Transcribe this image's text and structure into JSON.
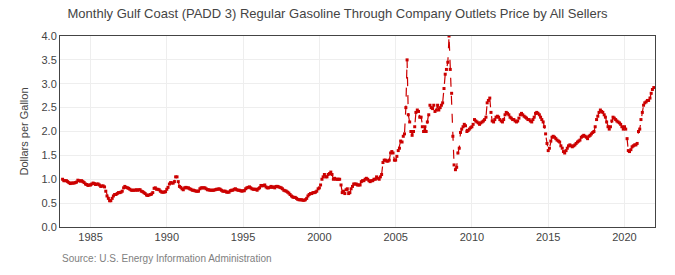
{
  "chart_data": {
    "type": "line",
    "title": "Monthly Gulf Coast (PADD 3) Regular Gasoline Through Company Outlets Price by All Sellers",
    "ylabel": "Dollars per Gallon",
    "annotations": [
      "Source: U.S. Energy Information Administration"
    ],
    "color": "#CC0000",
    "marker": "square",
    "line_style": "dashed",
    "grid": true,
    "xlim": [
      1983,
      2022
    ],
    "ylim": [
      0.0,
      4.0
    ],
    "xticks": [
      1985,
      1990,
      1995,
      2000,
      2005,
      2010,
      2015,
      2020
    ],
    "yticks": [
      {
        "value": 0.0,
        "label": "0.0"
      },
      0.5,
      {
        "value": 1.0,
        "label": "1.0"
      },
      1.5,
      {
        "value": 2.0,
        "label": "2.0"
      },
      2.5,
      {
        "value": 3.0,
        "label": "3.0"
      },
      3.5,
      {
        "value": 4.0,
        "label": "4.0"
      }
    ],
    "x": [
      1983.17,
      1983.25,
      1983.33,
      1983.42,
      1983.5,
      1983.58,
      1983.67,
      1983.75,
      1983.83,
      1983.92,
      1984.0,
      1984.08,
      1984.17,
      1984.25,
      1984.33,
      1984.42,
      1984.5,
      1984.58,
      1984.67,
      1984.75,
      1984.83,
      1984.92,
      1985.0,
      1985.08,
      1985.17,
      1985.25,
      1985.33,
      1985.42,
      1985.5,
      1985.58,
      1985.67,
      1985.75,
      1985.83,
      1985.92,
      1986.0,
      1986.08,
      1986.17,
      1986.25,
      1986.33,
      1986.42,
      1986.5,
      1986.58,
      1986.67,
      1986.75,
      1986.83,
      1986.92,
      1987.0,
      1987.08,
      1987.17,
      1987.25,
      1987.33,
      1987.42,
      1987.5,
      1987.58,
      1987.67,
      1987.75,
      1987.83,
      1987.92,
      1988.0,
      1988.08,
      1988.17,
      1988.25,
      1988.33,
      1988.42,
      1988.5,
      1988.58,
      1988.67,
      1988.75,
      1988.83,
      1988.92,
      1989.0,
      1989.08,
      1989.17,
      1989.25,
      1989.33,
      1989.42,
      1989.5,
      1989.58,
      1989.67,
      1989.75,
      1989.83,
      1989.92,
      1990.0,
      1990.08,
      1990.17,
      1990.25,
      1990.33,
      1990.42,
      1990.5,
      1990.58,
      1990.67,
      1990.75,
      1990.83,
      1990.92,
      1991.0,
      1991.08,
      1991.17,
      1991.25,
      1991.33,
      1991.42,
      1991.5,
      1991.58,
      1991.67,
      1991.75,
      1991.83,
      1991.92,
      1992.0,
      1992.08,
      1992.17,
      1992.25,
      1992.33,
      1992.42,
      1992.5,
      1992.58,
      1992.67,
      1992.75,
      1992.83,
      1992.92,
      1993.0,
      1993.08,
      1993.17,
      1993.25,
      1993.33,
      1993.42,
      1993.5,
      1993.58,
      1993.67,
      1993.75,
      1993.83,
      1993.92,
      1994.0,
      1994.08,
      1994.17,
      1994.25,
      1994.33,
      1994.42,
      1994.5,
      1994.58,
      1994.67,
      1994.75,
      1994.83,
      1994.92,
      1995.0,
      1995.08,
      1995.17,
      1995.25,
      1995.33,
      1995.42,
      1995.5,
      1995.58,
      1995.67,
      1995.75,
      1995.83,
      1995.92,
      1996.0,
      1996.08,
      1996.17,
      1996.25,
      1996.33,
      1996.42,
      1996.5,
      1996.58,
      1996.67,
      1996.75,
      1996.83,
      1996.92,
      1997.0,
      1997.08,
      1997.17,
      1997.25,
      1997.33,
      1997.42,
      1997.5,
      1997.58,
      1997.67,
      1997.75,
      1997.83,
      1997.92,
      1998.0,
      1998.08,
      1998.17,
      1998.25,
      1998.33,
      1998.42,
      1998.5,
      1998.58,
      1998.67,
      1998.75,
      1998.83,
      1998.92,
      1999.0,
      1999.08,
      1999.17,
      1999.25,
      1999.33,
      1999.42,
      1999.5,
      1999.58,
      1999.67,
      1999.75,
      1999.83,
      1999.92,
      2000.0,
      2000.08,
      2000.17,
      2000.25,
      2000.33,
      2000.42,
      2000.5,
      2000.58,
      2000.67,
      2000.75,
      2000.83,
      2000.92,
      2001.0,
      2001.08,
      2001.17,
      2001.25,
      2001.33,
      2001.42,
      2001.5,
      2001.58,
      2001.67,
      2001.75,
      2001.83,
      2001.92,
      2002.0,
      2002.08,
      2002.17,
      2002.25,
      2002.33,
      2002.42,
      2002.5,
      2002.58,
      2002.67,
      2002.75,
      2002.83,
      2002.92,
      2003.0,
      2003.08,
      2003.17,
      2003.25,
      2003.33,
      2003.42,
      2003.5,
      2003.58,
      2003.67,
      2003.75,
      2003.83,
      2003.92,
      2004.0,
      2004.08,
      2004.17,
      2004.25,
      2004.33,
      2004.42,
      2004.5,
      2004.58,
      2004.67,
      2004.75,
      2004.83,
      2004.92,
      2005.0,
      2005.08,
      2005.17,
      2005.25,
      2005.33,
      2005.42,
      2005.5,
      2005.58,
      2005.67,
      2005.75,
      2005.83,
      2005.92,
      2006.0,
      2006.08,
      2006.17,
      2006.25,
      2006.33,
      2006.42,
      2006.5,
      2006.58,
      2006.67,
      2006.75,
      2006.83,
      2006.92,
      2007.0,
      2007.08,
      2007.17,
      2007.25,
      2007.33,
      2007.42,
      2007.5,
      2007.58,
      2007.67,
      2007.75,
      2007.83,
      2007.92,
      2008.0,
      2008.08,
      2008.17,
      2008.25,
      2008.33,
      2008.42,
      2008.5,
      2008.58,
      2008.67,
      2008.75,
      2008.83,
      2008.92,
      2009.0,
      2009.08,
      2009.17,
      2009.25,
      2009.33,
      2009.42,
      2009.5,
      2009.58,
      2009.67,
      2009.75,
      2009.83,
      2009.92,
      2010.0,
      2010.08,
      2010.17,
      2010.25,
      2010.33,
      2010.42,
      2010.5,
      2010.58,
      2010.67,
      2010.75,
      2010.83,
      2010.92,
      2011.0,
      2011.08,
      2011.17,
      2011.25,
      2011.33,
      2011.42,
      2011.5,
      2011.58,
      2011.67,
      2011.75,
      2011.83,
      2011.92,
      2012.0,
      2012.08,
      2012.17,
      2012.25,
      2012.33,
      2012.42,
      2012.5,
      2012.58,
      2012.67,
      2012.75,
      2012.83,
      2012.92,
      2013.0,
      2013.08,
      2013.17,
      2013.25,
      2013.33,
      2013.42,
      2013.5,
      2013.58,
      2013.67,
      2013.75,
      2013.83,
      2013.92,
      2014.0,
      2014.08,
      2014.17,
      2014.25,
      2014.33,
      2014.42,
      2014.5,
      2014.58,
      2014.67,
      2014.75,
      2014.83,
      2014.92,
      2015.0,
      2015.08,
      2015.17,
      2015.25,
      2015.33,
      2015.42,
      2015.5,
      2015.58,
      2015.67,
      2015.75,
      2015.83,
      2015.92,
      2016.0,
      2016.08,
      2016.17,
      2016.25,
      2016.33,
      2016.42,
      2016.5,
      2016.58,
      2016.67,
      2016.75,
      2016.83,
      2016.92,
      2017.0,
      2017.08,
      2017.17,
      2017.25,
      2017.33,
      2017.42,
      2017.5,
      2017.58,
      2017.67,
      2017.75,
      2017.83,
      2017.92,
      2018.0,
      2018.08,
      2018.17,
      2018.25,
      2018.33,
      2018.42,
      2018.5,
      2018.58,
      2018.67,
      2018.75,
      2018.83,
      2018.92,
      2019.0,
      2019.08,
      2019.17,
      2019.25,
      2019.33,
      2019.42,
      2019.5,
      2019.58,
      2019.67,
      2019.75,
      2019.83,
      2019.92,
      2020.0,
      2020.08,
      2020.17,
      2020.25,
      2020.33,
      2020.42,
      2020.5,
      2020.58,
      2020.67,
      2020.75,
      2020.83,
      2020.92,
      2021.0,
      2021.08,
      2021.17,
      2021.25,
      2021.33,
      2021.42,
      2021.5,
      2021.58,
      2021.67,
      2021.75,
      2021.83,
      2021.92
    ],
    "values": [
      1.0,
      0.97,
      0.97,
      0.97,
      0.95,
      0.93,
      0.91,
      0.92,
      0.92,
      0.92,
      0.93,
      0.94,
      0.98,
      0.97,
      0.96,
      0.97,
      0.95,
      0.93,
      0.9,
      0.89,
      0.87,
      0.88,
      0.88,
      0.9,
      0.92,
      0.91,
      0.89,
      0.9,
      0.9,
      0.88,
      0.85,
      0.86,
      0.86,
      0.84,
      0.75,
      0.65,
      0.6,
      0.55,
      0.55,
      0.6,
      0.65,
      0.68,
      0.68,
      0.7,
      0.72,
      0.72,
      0.73,
      0.75,
      0.82,
      0.85,
      0.83,
      0.82,
      0.81,
      0.79,
      0.77,
      0.77,
      0.77,
      0.77,
      0.78,
      0.77,
      0.78,
      0.78,
      0.75,
      0.74,
      0.72,
      0.7,
      0.67,
      0.66,
      0.67,
      0.68,
      0.69,
      0.72,
      0.81,
      0.82,
      0.79,
      0.79,
      0.78,
      0.75,
      0.73,
      0.73,
      0.73,
      0.74,
      0.79,
      0.83,
      0.9,
      0.93,
      0.92,
      0.92,
      0.95,
      1.05,
      1.05,
      0.95,
      0.85,
      0.83,
      0.8,
      0.78,
      0.82,
      0.83,
      0.82,
      0.82,
      0.8,
      0.79,
      0.77,
      0.77,
      0.76,
      0.75,
      0.75,
      0.75,
      0.8,
      0.82,
      0.82,
      0.82,
      0.82,
      0.8,
      0.78,
      0.78,
      0.77,
      0.77,
      0.77,
      0.77,
      0.78,
      0.79,
      0.79,
      0.8,
      0.79,
      0.77,
      0.75,
      0.75,
      0.75,
      0.73,
      0.73,
      0.73,
      0.76,
      0.77,
      0.77,
      0.79,
      0.8,
      0.78,
      0.77,
      0.77,
      0.76,
      0.75,
      0.76,
      0.76,
      0.8,
      0.82,
      0.83,
      0.84,
      0.82,
      0.8,
      0.79,
      0.79,
      0.79,
      0.77,
      0.8,
      0.82,
      0.87,
      0.86,
      0.87,
      0.88,
      0.84,
      0.82,
      0.82,
      0.83,
      0.85,
      0.83,
      0.84,
      0.82,
      0.85,
      0.85,
      0.84,
      0.83,
      0.82,
      0.8,
      0.77,
      0.76,
      0.75,
      0.73,
      0.71,
      0.68,
      0.65,
      0.63,
      0.62,
      0.62,
      0.6,
      0.58,
      0.57,
      0.57,
      0.57,
      0.56,
      0.56,
      0.57,
      0.6,
      0.65,
      0.68,
      0.7,
      0.7,
      0.72,
      0.72,
      0.73,
      0.75,
      0.8,
      0.82,
      0.88,
      1.0,
      1.05,
      1.1,
      1.05,
      1.05,
      1.1,
      1.12,
      1.15,
      1.1,
      1.0,
      1.02,
      1.0,
      1.0,
      1.0,
      1.0,
      0.88,
      0.72,
      0.75,
      0.7,
      0.78,
      0.8,
      0.7,
      0.72,
      0.8,
      0.85,
      0.9,
      0.9,
      0.9,
      0.88,
      0.88,
      0.88,
      0.95,
      0.97,
      0.97,
      1.0,
      1.02,
      1.0,
      0.97,
      0.95,
      0.97,
      0.97,
      1.0,
      1.0,
      1.05,
      1.02,
      1.0,
      1.05,
      1.1,
      1.35,
      1.4,
      1.4,
      1.38,
      1.38,
      1.4,
      1.55,
      1.58,
      1.55,
      1.4,
      1.4,
      1.48,
      1.6,
      1.65,
      1.8,
      1.78,
      1.9,
      1.95,
      2.5,
      3.5,
      2.35,
      2.2,
      2.0,
      1.92,
      2.0,
      2.1,
      2.4,
      2.45,
      2.42,
      2.3,
      2.3,
      2.1,
      2.0,
      2.1,
      2.0,
      2.2,
      2.35,
      2.55,
      2.5,
      2.48,
      2.55,
      2.42,
      2.45,
      2.55,
      2.45,
      2.5,
      2.55,
      2.6,
      2.9,
      3.2,
      3.3,
      3.45,
      4.0,
      3.3,
      2.8,
      1.9,
      1.3,
      1.2,
      1.25,
      1.55,
      1.65,
      1.98,
      2.05,
      2.1,
      2.15,
      2.12,
      2.0,
      2.02,
      2.05,
      2.08,
      2.1,
      2.15,
      2.25,
      2.22,
      2.2,
      2.18,
      2.15,
      2.18,
      2.2,
      2.22,
      2.25,
      2.3,
      2.6,
      2.65,
      2.7,
      2.4,
      2.22,
      2.2,
      2.25,
      2.3,
      2.32,
      2.3,
      2.25,
      2.22,
      2.2,
      2.25,
      2.35,
      2.4,
      2.38,
      2.35,
      2.3,
      2.28,
      2.25,
      2.25,
      2.22,
      2.2,
      2.22,
      2.28,
      2.35,
      2.38,
      2.35,
      2.32,
      2.3,
      2.28,
      2.25,
      2.25,
      2.22,
      2.2,
      2.25,
      2.3,
      2.38,
      2.4,
      2.38,
      2.35,
      2.3,
      2.25,
      2.2,
      2.1,
      1.95,
      1.75,
      1.6,
      1.65,
      1.8,
      1.88,
      1.9,
      1.88,
      1.85,
      1.82,
      1.8,
      1.78,
      1.7,
      1.65,
      1.58,
      1.55,
      1.6,
      1.65,
      1.7,
      1.72,
      1.7,
      1.68,
      1.7,
      1.72,
      1.75,
      1.78,
      1.8,
      1.82,
      1.88,
      1.9,
      1.92,
      1.9,
      1.88,
      1.85,
      1.9,
      1.92,
      1.95,
      1.98,
      2.0,
      2.1,
      2.25,
      2.32,
      2.4,
      2.45,
      2.42,
      2.4,
      2.35,
      2.3,
      2.2,
      2.1,
      2.05,
      2.1,
      2.22,
      2.3,
      2.28,
      2.25,
      2.22,
      2.2,
      2.18,
      2.15,
      2.1,
      2.05,
      2.1,
      2.05,
      1.85,
      1.6,
      1.58,
      1.62,
      1.68,
      1.7,
      1.72,
      1.72,
      1.75,
      2.0,
      2.05,
      2.25,
      2.4,
      2.55,
      2.6,
      2.62,
      2.65,
      2.65,
      2.7,
      2.8,
      2.88,
      2.92
    ]
  }
}
